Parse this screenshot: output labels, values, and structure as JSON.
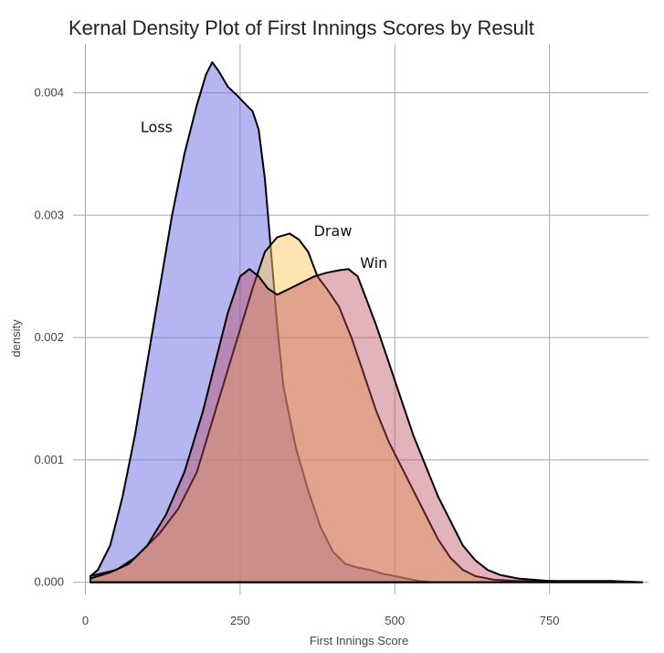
{
  "chart_data": {
    "type": "area",
    "title": "Kernal Density Plot of First Innings Scores by Result",
    "xlabel": "First Innings Score",
    "ylabel": "density",
    "xlim": [
      -20,
      910
    ],
    "ylim": [
      -0.0001,
      0.0044
    ],
    "x_ticks": [
      0,
      250,
      500,
      750
    ],
    "x_tick_labels": [
      "0",
      "250",
      "500",
      "750"
    ],
    "y_ticks": [
      0.0,
      0.001,
      0.002,
      0.003,
      0.004
    ],
    "y_tick_labels": [
      "0.000",
      "0.001",
      "0.002",
      "0.003",
      "0.004"
    ],
    "grid": true,
    "legend": "none",
    "series": [
      {
        "name": "Loss",
        "fill": "#6b6be6",
        "opacity": 0.5,
        "points": [
          [
            8,
            5e-05
          ],
          [
            20,
            0.0001
          ],
          [
            40,
            0.0003
          ],
          [
            60,
            0.0007
          ],
          [
            80,
            0.0012
          ],
          [
            100,
            0.0018
          ],
          [
            120,
            0.0024
          ],
          [
            140,
            0.003
          ],
          [
            160,
            0.0035
          ],
          [
            180,
            0.0039
          ],
          [
            195,
            0.00415
          ],
          [
            205,
            0.00425
          ],
          [
            215,
            0.00418
          ],
          [
            230,
            0.00405
          ],
          [
            245,
            0.00398
          ],
          [
            260,
            0.0039
          ],
          [
            270,
            0.00385
          ],
          [
            280,
            0.0037
          ],
          [
            290,
            0.0033
          ],
          [
            300,
            0.0027
          ],
          [
            310,
            0.0021
          ],
          [
            320,
            0.0016
          ],
          [
            340,
            0.0011
          ],
          [
            360,
            0.00075
          ],
          [
            380,
            0.00045
          ],
          [
            400,
            0.00025
          ],
          [
            420,
            0.00015
          ],
          [
            440,
            0.00012
          ],
          [
            460,
            0.0001
          ],
          [
            480,
            7e-05
          ],
          [
            500,
            5e-05
          ],
          [
            520,
            3e-05
          ],
          [
            540,
            1e-05
          ],
          [
            560,
            0.0
          ]
        ]
      },
      {
        "name": "Draw",
        "fill": "#ffc966",
        "opacity": 0.5,
        "points": [
          [
            8,
            5e-05
          ],
          [
            50,
            0.0001
          ],
          [
            80,
            0.0002
          ],
          [
            120,
            0.0004
          ],
          [
            150,
            0.0006
          ],
          [
            180,
            0.0009
          ],
          [
            210,
            0.0014
          ],
          [
            240,
            0.0019
          ],
          [
            270,
            0.0024
          ],
          [
            290,
            0.0027
          ],
          [
            310,
            0.00282
          ],
          [
            330,
            0.00285
          ],
          [
            345,
            0.0028
          ],
          [
            360,
            0.0027
          ],
          [
            375,
            0.0025
          ],
          [
            390,
            0.0024
          ],
          [
            410,
            0.00225
          ],
          [
            430,
            0.002
          ],
          [
            450,
            0.0017
          ],
          [
            470,
            0.0014
          ],
          [
            490,
            0.00115
          ],
          [
            510,
            0.00095
          ],
          [
            530,
            0.00075
          ],
          [
            550,
            0.00055
          ],
          [
            570,
            0.00035
          ],
          [
            590,
            0.0002
          ],
          [
            610,
            0.0001
          ],
          [
            630,
            5e-05
          ],
          [
            660,
            2e-05
          ],
          [
            700,
            1e-05
          ],
          [
            750,
            1e-05
          ],
          [
            800,
            1e-05
          ],
          [
            850,
            1e-05
          ],
          [
            900,
            0.0
          ]
        ]
      },
      {
        "name": "Win",
        "fill": "#b94a5e",
        "opacity": 0.42,
        "points": [
          [
            8,
            3e-05
          ],
          [
            40,
            8e-05
          ],
          [
            70,
            0.00015
          ],
          [
            100,
            0.0003
          ],
          [
            130,
            0.00055
          ],
          [
            160,
            0.0009
          ],
          [
            190,
            0.0014
          ],
          [
            210,
            0.0018
          ],
          [
            230,
            0.0022
          ],
          [
            250,
            0.0025
          ],
          [
            265,
            0.00256
          ],
          [
            280,
            0.0025
          ],
          [
            295,
            0.0024
          ],
          [
            310,
            0.00235
          ],
          [
            330,
            0.0024
          ],
          [
            350,
            0.00245
          ],
          [
            370,
            0.0025
          ],
          [
            390,
            0.00253
          ],
          [
            410,
            0.00255
          ],
          [
            425,
            0.00256
          ],
          [
            440,
            0.0025
          ],
          [
            455,
            0.0023
          ],
          [
            470,
            0.0021
          ],
          [
            490,
            0.0018
          ],
          [
            510,
            0.0015
          ],
          [
            530,
            0.0012
          ],
          [
            550,
            0.00095
          ],
          [
            570,
            0.0007
          ],
          [
            590,
            0.0005
          ],
          [
            610,
            0.0003
          ],
          [
            630,
            0.00018
          ],
          [
            650,
            0.0001
          ],
          [
            670,
            6e-05
          ],
          [
            700,
            3e-05
          ],
          [
            750,
            1e-05
          ],
          [
            800,
            0.0
          ],
          [
            900,
            0.0
          ]
        ]
      }
    ],
    "annotations": [
      {
        "text": "Loss",
        "x": 115,
        "y": 0.00368
      },
      {
        "text": "Draw",
        "x": 400,
        "y": 0.00283
      },
      {
        "text": "Win",
        "x": 466,
        "y": 0.00257
      }
    ]
  }
}
